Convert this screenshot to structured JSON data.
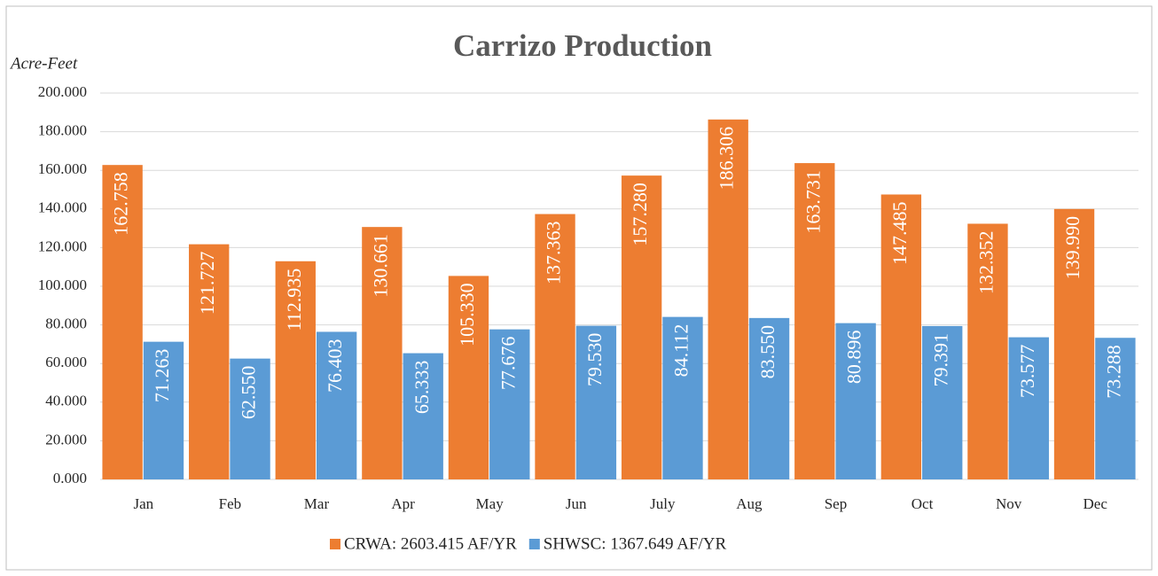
{
  "chart_data": {
    "type": "bar",
    "title": "Carrizo Production",
    "y_label": "Acre-Feet",
    "categories": [
      "Jan",
      "Feb",
      "Mar",
      "Apr",
      "May",
      "Jun",
      "July",
      "Aug",
      "Sep",
      "Oct",
      "Nov",
      "Dec"
    ],
    "series": [
      {
        "name": "CRWA: 2603.415 AF/YR",
        "color": "#ed7d31",
        "values": [
          162.758,
          121.727,
          112.935,
          130.661,
          105.33,
          137.363,
          157.28,
          186.306,
          163.731,
          147.485,
          132.352,
          139.99
        ],
        "value_labels": [
          "162.758",
          "121.727",
          "112.935",
          "130.661",
          "105.330",
          "137.363",
          "157.280",
          "186.306",
          "163.731",
          "147.485",
          "132.352",
          "139.990"
        ]
      },
      {
        "name": "SHWSC: 1367.649 AF/YR",
        "color": "#5b9bd5",
        "values": [
          71.263,
          62.55,
          76.403,
          65.333,
          77.676,
          79.53,
          84.112,
          83.55,
          80.896,
          79.391,
          73.577,
          73.288
        ],
        "value_labels": [
          "71.263",
          "62.550",
          "76.403",
          "65.333",
          "77.676",
          "79.530",
          "84.112",
          "83.550",
          "80.896",
          "79.391",
          "73.577",
          "73.288"
        ]
      }
    ],
    "ylim": [
      0,
      200
    ],
    "yticks": [
      {
        "value": 0,
        "label": "0.000"
      },
      {
        "value": 20,
        "label": "20.000"
      },
      {
        "value": 40,
        "label": "40.000"
      },
      {
        "value": 60,
        "label": "60.000"
      },
      {
        "value": 80,
        "label": "80.000"
      },
      {
        "value": 100,
        "label": "100.000"
      },
      {
        "value": 120,
        "label": "120.000"
      },
      {
        "value": 140,
        "label": "140.000"
      },
      {
        "value": 160,
        "label": "160.000"
      },
      {
        "value": 180,
        "label": "180.000"
      },
      {
        "value": 200,
        "label": "200.000"
      }
    ],
    "grid": true,
    "legend": "bottom"
  }
}
